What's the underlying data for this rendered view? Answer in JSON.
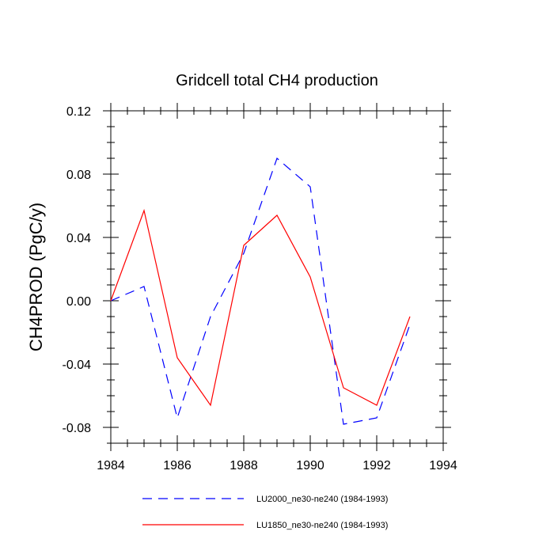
{
  "chart_data": {
    "type": "line",
    "title": "Gridcell total CH4 production",
    "xlabel": "",
    "ylabel": "CH4PROD  (PgC/y)",
    "xlim": [
      1984,
      1994
    ],
    "ylim": [
      -0.09,
      0.12
    ],
    "x_ticks": [
      1984,
      1986,
      1988,
      1990,
      1992,
      1994
    ],
    "x_tick_labels": [
      "1984",
      "1986",
      "1988",
      "1990",
      "1992",
      "1994"
    ],
    "y_ticks": [
      -0.08,
      -0.04,
      0.0,
      0.04,
      0.08,
      0.12
    ],
    "y_tick_labels": [
      "-0.08",
      "-0.04",
      "0.00",
      "0.04",
      "0.08",
      "0.12"
    ],
    "x": [
      1984,
      1985,
      1986,
      1987,
      1988,
      1989,
      1990,
      1991,
      1992,
      1993
    ],
    "series": [
      {
        "name": "LU2000_ne30-ne240 (1984-1993)",
        "color": "#0000ff",
        "style": "dashed",
        "values": [
          0.0,
          0.009,
          -0.074,
          -0.01,
          0.03,
          0.09,
          0.072,
          -0.078,
          -0.074,
          -0.015
        ]
      },
      {
        "name": "LU1850_ne30-ne240 (1984-1993)",
        "color": "#ff0000",
        "style": "solid",
        "values": [
          0.0,
          0.057,
          -0.036,
          -0.066,
          0.035,
          0.054,
          0.015,
          -0.055,
          -0.066,
          -0.01
        ]
      }
    ],
    "legend_position": "bottom"
  }
}
